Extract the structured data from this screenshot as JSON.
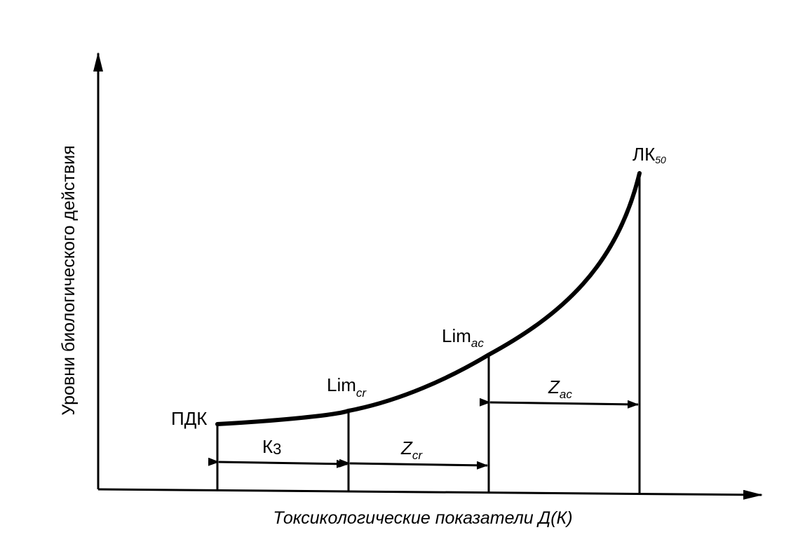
{
  "axes": {
    "y_title": "Уровни биологического действия",
    "x_title": "Токсикологические показатели Д(К)"
  },
  "points": {
    "pdk": {
      "main": "ПДК"
    },
    "lim_cr": {
      "main": "Lim",
      "sub": "cr"
    },
    "lim_ac": {
      "main": "Lim",
      "sub": "ac"
    },
    "lk50": {
      "main": "ЛК",
      "sub": "50"
    }
  },
  "intervals": {
    "k3": {
      "main": "К",
      "sub": "3"
    },
    "z_cr": {
      "main": "Z",
      "sub": "cr"
    },
    "z_ac": {
      "main": "Z",
      "sub": "ac"
    }
  },
  "colors": {
    "ink": "#000000",
    "background": "#ffffff"
  }
}
